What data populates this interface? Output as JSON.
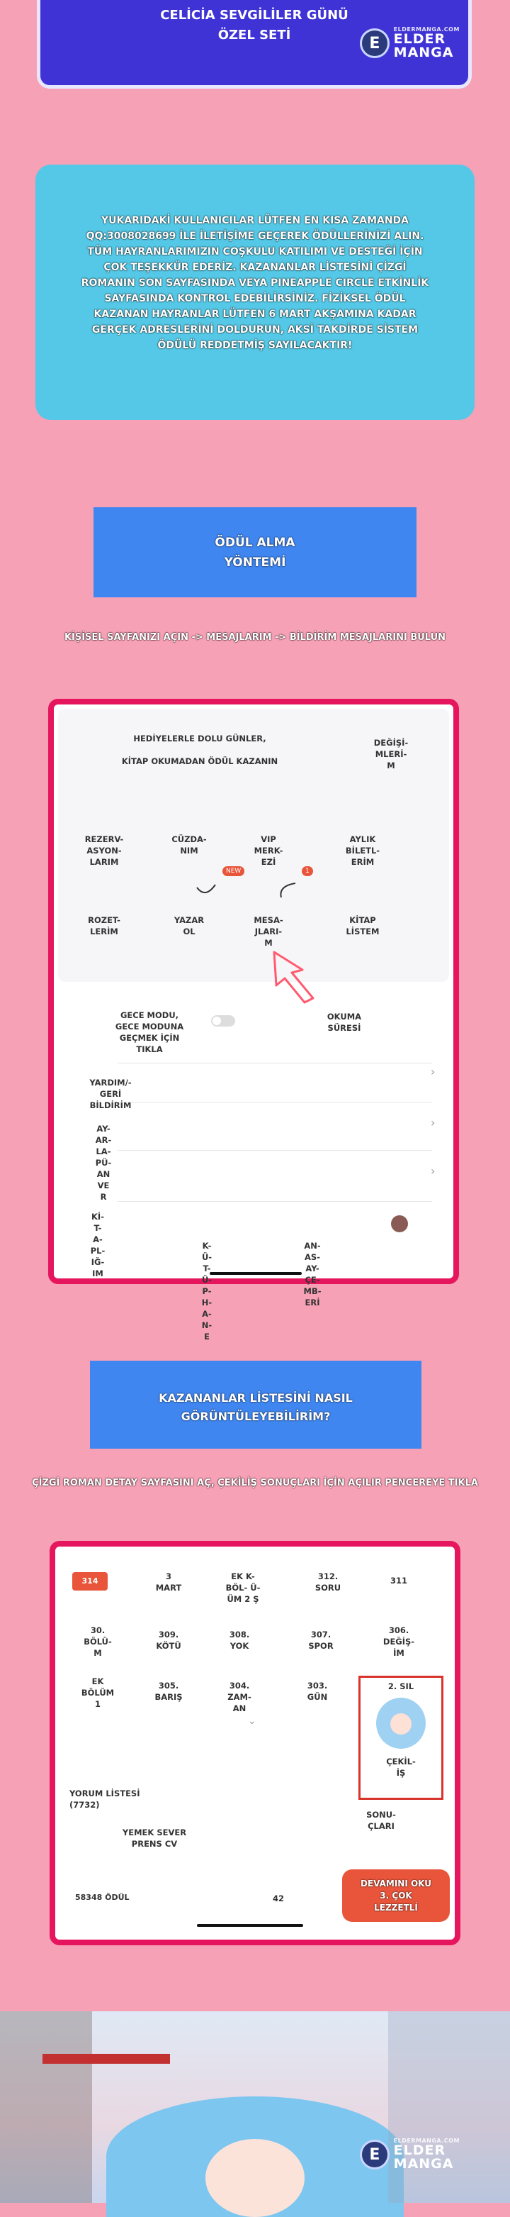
{
  "header": {
    "title_line1": "CELİCİA SEVGİLİLER GÜNÜ",
    "title_line2": "ÖZEL SETİ"
  },
  "watermark": {
    "letter": "E",
    "small": "ELDERMANGA.COM",
    "brand": "ELDER MANGA"
  },
  "announcement": {
    "text": "YUKARIDAKİ KULLANICILAR LÜTFEN EN KISA ZAMANDA QQ:3008028699 İLE İLETİŞİME GEÇEREK ÖDÜLLERİNİZİ ALIN. TÜM HAYRANLARIMIZIN COŞKULU KATILIMI VE DESTEĞİ İÇİN ÇOK TEŞEKKÜR EDERİZ. KAZANANLAR LİSTESİNİ ÇİZGİ ROMANIN SON SAYFASINDA VEYA PINEAPPLE CIRCLE ETKİNLİK SAYFASINDA KONTROL EDEBİLİRSİNİZ. FİZİKSEL ÖDÜL KAZANAN HAYRANLAR LÜTFEN 6 MART AKŞAMINA KADAR GERÇEK ADRESLERİNİ DOLDURUN, AKSİ TAKDİRDE SİSTEM ÖDÜLÜ REDDETMİŞ SAYILACAKTIR!"
  },
  "reward_method": {
    "title_line1": "ÖDÜL ALMA",
    "title_line2": "YÖNTEMİ",
    "instruction": "KİŞİSEL SAYFANIZI AÇIN -> MESAJLARIM -> BİLDİRİM MESAJLARINI BULUN"
  },
  "app_screen": {
    "banner_line1": "HEDİYELERLE DOLU GÜNLER,",
    "banner_line2": "KİTAP OKUMADAN ÖDÜL KAZANIN",
    "exchange": "DEĞİŞİ-\nMLERİ-\nM",
    "grid": [
      {
        "label": "REZERV-\nASYON-\nLARIM"
      },
      {
        "label": "CÜZDA-\nNIM",
        "badge": "NEW"
      },
      {
        "label": "VIP\nMERK-\nEZİ",
        "badge": "1"
      },
      {
        "label": "AYLIK\nBİLETL-\nERİM"
      },
      {
        "label": "ROZET-\nLERİM"
      },
      {
        "label": "YAZAR\nOL"
      },
      {
        "label": "MESA-\nJLARI-\nM"
      },
      {
        "label": "KİTAP\nLİSTEM"
      }
    ],
    "night_mode": "GECE MODU,\nGECE MODUNA\nGEÇMEK İÇİN\nTIKLA",
    "reading_time": "OKUMA\nSÜRESİ",
    "help": "YARDIM/-\nGERİ\nBİLDİRİM",
    "list_label": "AY-\nAR-\nLA-\nPÜ-\nAN\nVE\nR",
    "tabs": [
      {
        "label": "Kİ-\nT-\nA-\nPL-\nIĞ-\nIM"
      },
      {
        "label": "K-\nÜ-\nT-\nÜ-\nP-\nH-\nA-\nN-\nE"
      },
      {
        "label": "AN-\nAS-\nAY-\nÇE-\nMB-\nERİ"
      }
    ]
  },
  "winners": {
    "title_line1": "KAZANANLAR LİSTESİNİ NASIL",
    "title_line2": "GÖRÜNTÜLEYEBİLİRİM?",
    "instruction": "ÇİZGİ ROMAN DETAY SAYFASINI AÇ, ÇEKİLİŞ SONUÇLARI İÇİN AÇILIR PENCEREYE TIKLA"
  },
  "chapter_screen": {
    "chapters": [
      {
        "label": "314",
        "highlight": true
      },
      {
        "label": "3\nMART"
      },
      {
        "label": "EK  K-\nBÖL- Ü-\nÜM 2 Ş"
      },
      {
        "label": "312.\nSORU"
      },
      {
        "label": "311"
      },
      {
        "label": "30.\nBÖLÜ-\nM"
      },
      {
        "label": "309.\nKÖTÜ"
      },
      {
        "label": "308.\nYOK"
      },
      {
        "label": "307.\nSPOR"
      },
      {
        "label": "306.\nDEĞİŞ-\nİM"
      },
      {
        "label": "EK\nBÖLÜM\n1"
      },
      {
        "label": "305.\nBARIŞ"
      },
      {
        "label": "304.\nZAM-\nAN"
      },
      {
        "label": "303.\nGÜN"
      },
      {
        "label": "2. SIL"
      }
    ],
    "lottery": "ÇEKİL-\nİŞ",
    "results": "SONU-\nÇLARI",
    "comments": "YORUM LİSTESİ\n(7732)",
    "food_lover": "YEMEK SEVER\nPRENS CV",
    "reward_count": "58348 ÖDÜL",
    "count_42": "42",
    "read_button": "DEVAMINI OKU\n3. ÇOK\nLEZZETLİ"
  },
  "colors": {
    "page_bg": "#f7a1b6",
    "title_blue": "#3f33d6",
    "cyan_panel": "#54c8e6",
    "heading_blue": "#3f86f0",
    "frame_red": "#e5165e"
  }
}
